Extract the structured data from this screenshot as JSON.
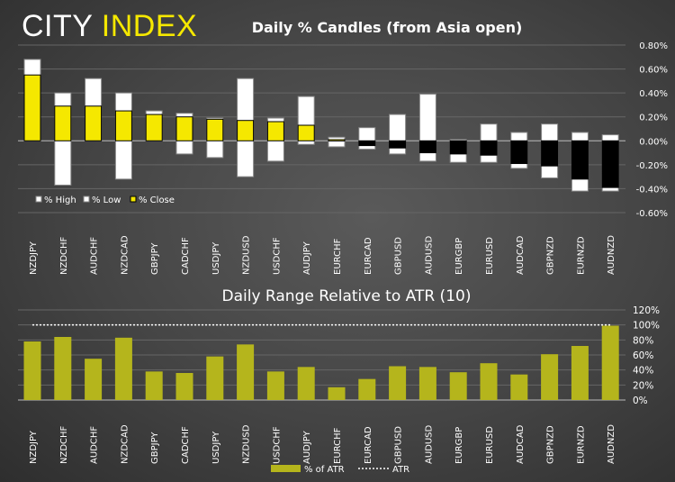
{
  "logo": {
    "part1": "CITY",
    "part2": "INDEX"
  },
  "colors": {
    "close_up": "#f5e800",
    "close_down": "#000000",
    "high_low": "#ffffff",
    "atr_bar": "#b5b51c",
    "atr_line": "#ffffff",
    "logo_accent": "#f5e800"
  },
  "chart_data": [
    {
      "type": "bar",
      "subtype": "candle",
      "title": "Daily % Candles (from Asia open)",
      "categories": [
        "NZDJPY",
        "NZDCHF",
        "AUDCHF",
        "NZDCAD",
        "GBPJPY",
        "CADCHF",
        "USDJPY",
        "NZDUSD",
        "USDCHF",
        "AUDJPY",
        "EURCHF",
        "EURCAD",
        "GBPUSD",
        "AUDUSD",
        "EURGBP",
        "EURUSD",
        "AUDCAD",
        "GBPNZD",
        "EURNZD",
        "AUDNZD"
      ],
      "series": [
        {
          "name": "% High",
          "values": [
            0.68,
            0.4,
            0.52,
            0.4,
            0.25,
            0.23,
            0.19,
            0.52,
            0.19,
            0.37,
            0.03,
            0.11,
            0.22,
            0.39,
            0.01,
            0.14,
            0.07,
            0.14,
            0.07,
            0.05
          ]
        },
        {
          "name": "% Low",
          "values": [
            0.0,
            -0.37,
            0.0,
            -0.32,
            0.0,
            -0.11,
            -0.14,
            -0.3,
            -0.17,
            -0.03,
            -0.05,
            -0.07,
            -0.11,
            -0.17,
            -0.18,
            -0.18,
            -0.23,
            -0.31,
            -0.42,
            -0.42
          ]
        },
        {
          "name": "% Close",
          "values": [
            0.55,
            0.29,
            0.29,
            0.25,
            0.22,
            0.2,
            0.18,
            0.17,
            0.16,
            0.13,
            0.01,
            -0.04,
            -0.06,
            -0.1,
            -0.11,
            -0.12,
            -0.19,
            -0.21,
            -0.32,
            -0.39
          ]
        }
      ],
      "ylim": [
        -0.6,
        0.8
      ],
      "yticks": [
        "0.80%",
        "0.60%",
        "0.40%",
        "0.20%",
        "0.00%",
        "-0.20%",
        "-0.40%",
        "-0.60%"
      ],
      "ytick_values": [
        0.8,
        0.6,
        0.4,
        0.2,
        0,
        -0.2,
        -0.4,
        -0.6
      ],
      "grid": true,
      "legend": "bottom-left",
      "y_axis_side": "right"
    },
    {
      "type": "bar",
      "title": "Daily Range Relative to ATR (10)",
      "categories": [
        "NZDJPY",
        "NZDCHF",
        "AUDCHF",
        "NZDCAD",
        "GBPJPY",
        "CADCHF",
        "USDJPY",
        "NZDUSD",
        "USDCHF",
        "AUDJPY",
        "EURCHF",
        "EURCAD",
        "GBPUSD",
        "AUDUSD",
        "EURGBP",
        "EURUSD",
        "AUDCAD",
        "GBPNZD",
        "EURNZD",
        "AUDNZD"
      ],
      "series": [
        {
          "name": "% of ATR",
          "values": [
            78,
            84,
            55,
            83,
            38,
            36,
            58,
            74,
            38,
            44,
            17,
            28,
            45,
            44,
            37,
            49,
            34,
            61,
            72,
            99
          ]
        },
        {
          "name": "ATR",
          "type": "line",
          "style": "dotted",
          "value": 100
        }
      ],
      "ylim": [
        0,
        120
      ],
      "yticks": [
        "120%",
        "100%",
        "80%",
        "60%",
        "40%",
        "20%",
        "0%"
      ],
      "ytick_values": [
        120,
        100,
        80,
        60,
        40,
        20,
        0
      ],
      "grid": true,
      "legend": "bottom",
      "y_axis_side": "right"
    }
  ]
}
